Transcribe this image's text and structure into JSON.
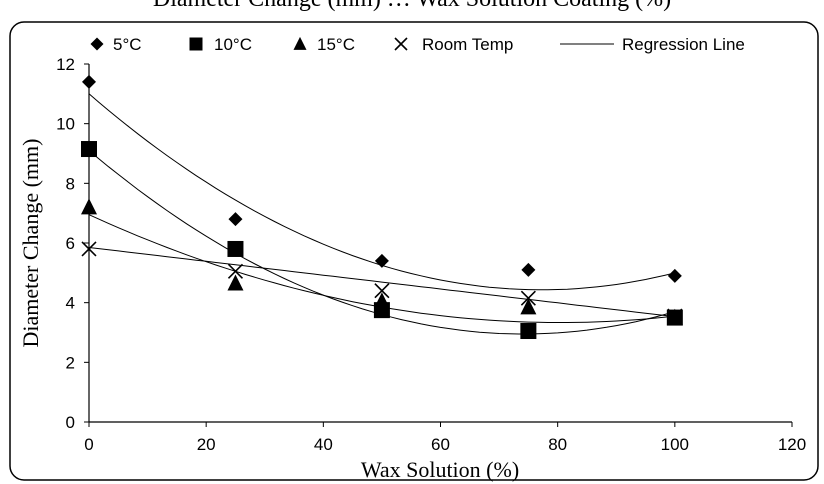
{
  "page_title": "Diameter Change (mm) … Wax Solution Coating (%)",
  "chart_data": {
    "type": "scatter",
    "title": "Diameter Change (mm) … Wax Solution Coating (%)",
    "xlabel": "Wax Solution (%)",
    "ylabel": "Diameter Change (mm)",
    "xlim": [
      0,
      120
    ],
    "ylim": [
      0,
      12
    ],
    "x_ticks": [
      0,
      20,
      40,
      60,
      80,
      100,
      120
    ],
    "y_ticks": [
      0,
      2,
      4,
      6,
      8,
      10,
      12
    ],
    "grid": false,
    "legend_position": "top",
    "series": [
      {
        "name": "5°C",
        "marker": "diamond",
        "color": "#000000",
        "x": [
          0,
          25,
          50,
          75,
          100
        ],
        "y": [
          11.4,
          6.8,
          5.4,
          5.1,
          4.9
        ],
        "regression": {
          "x_range": [
            0,
            100
          ],
          "coeffs": [
            11.0,
            -0.17,
            0.0011
          ]
        }
      },
      {
        "name": "10°C",
        "marker": "square",
        "color": "#000000",
        "x": [
          0,
          25,
          50,
          75,
          100
        ],
        "y": [
          9.15,
          5.8,
          3.75,
          3.05,
          3.5
        ],
        "regression": {
          "x_range": [
            0,
            100
          ],
          "coeffs": [
            9.1,
            -0.166,
            0.00112
          ]
        }
      },
      {
        "name": "15°C",
        "marker": "triangle",
        "color": "#000000",
        "x": [
          0,
          25,
          50,
          75,
          100
        ],
        "y": [
          7.2,
          4.65,
          4.05,
          3.85,
          3.5
        ],
        "regression": {
          "x_range": [
            0,
            100
          ],
          "coeffs": [
            6.95,
            -0.09,
            0.00056
          ]
        }
      },
      {
        "name": "Room Temp",
        "marker": "x",
        "color": "#000000",
        "x": [
          0,
          25,
          50,
          75,
          100
        ],
        "y": [
          5.8,
          5.05,
          4.4,
          4.15,
          3.55
        ],
        "regression": {
          "x_range": [
            0,
            100
          ],
          "coeffs": [
            5.85,
            -0.0232,
            0
          ]
        }
      }
    ],
    "regression_legend_label": "Regression Line"
  }
}
